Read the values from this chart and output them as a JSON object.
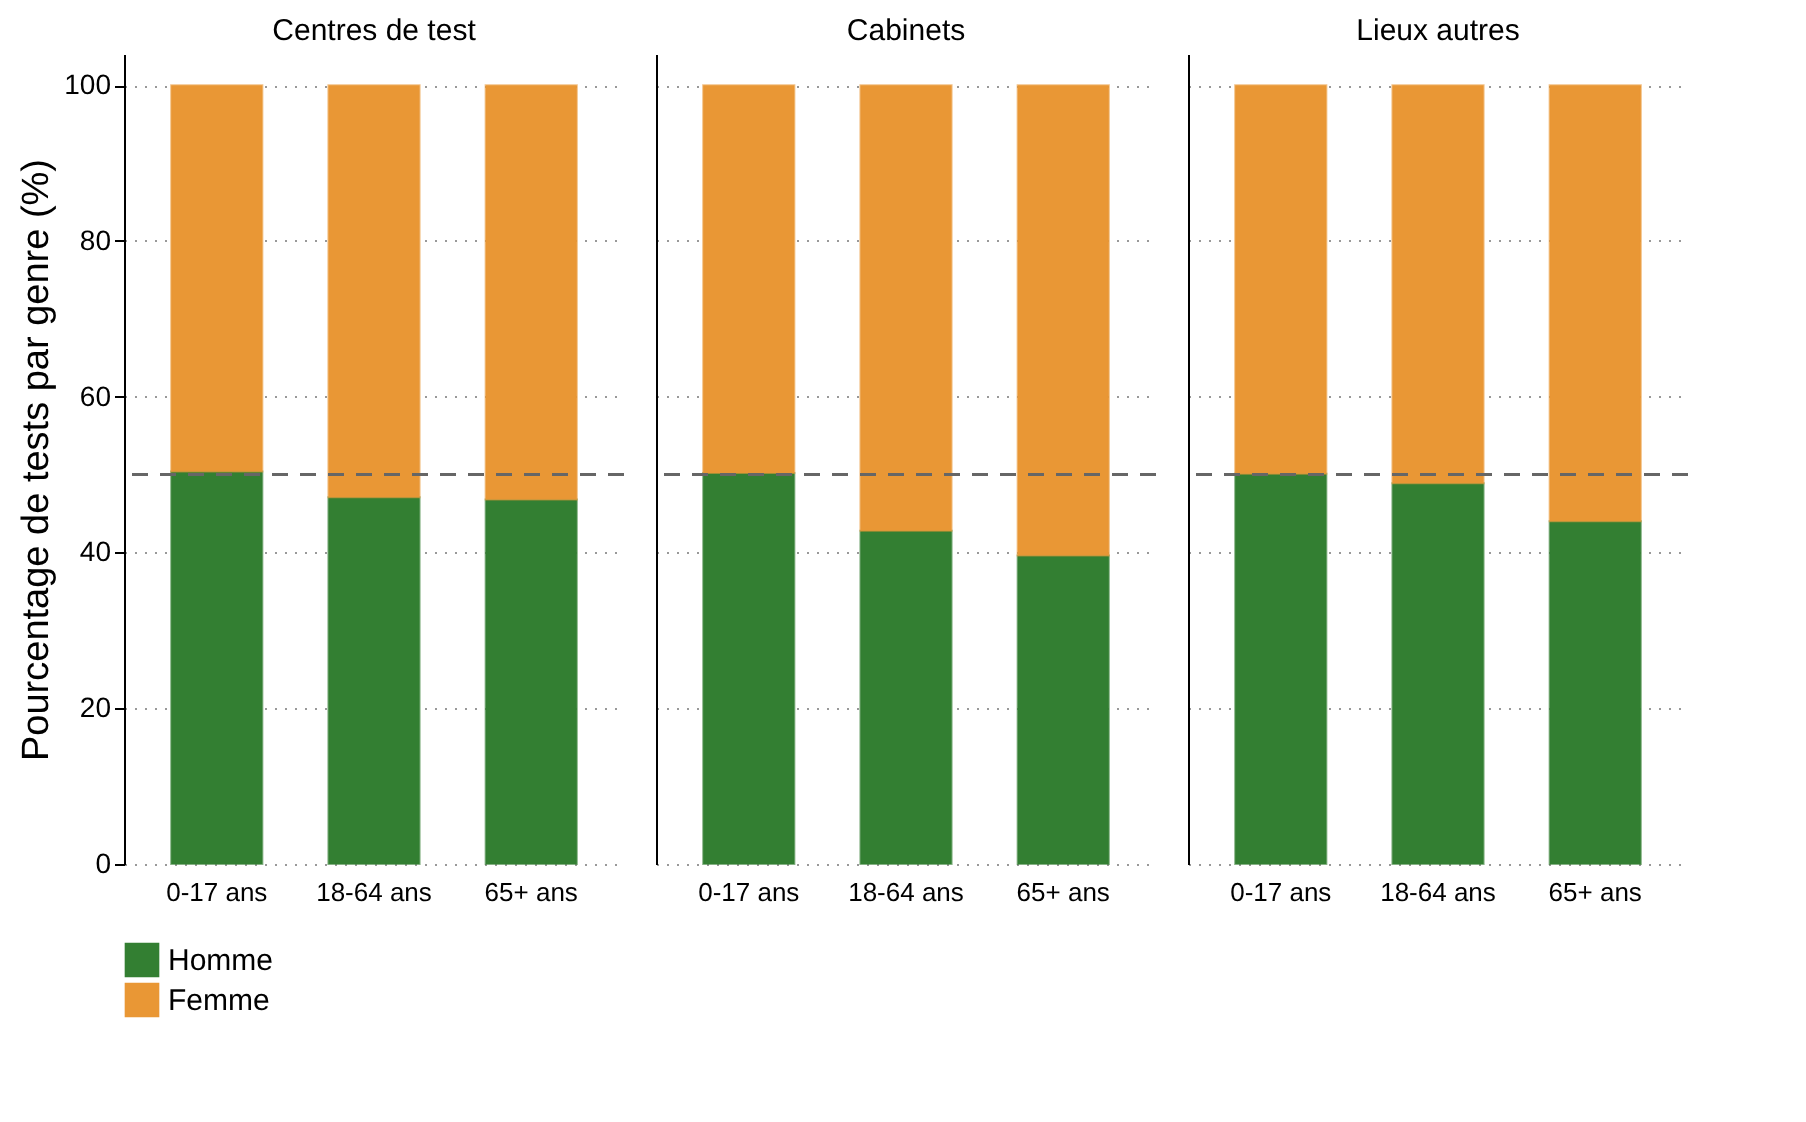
{
  "chart_data": [
    {
      "type": "bar",
      "title": "Centres de test",
      "ylabel": "Pourcentage de tests par genre (%)",
      "categories": [
        "0-17 ans",
        "18-64 ans",
        "65+ ans"
      ],
      "stacked": true,
      "series": [
        {
          "name": "Homme",
          "color": "#337f32",
          "values": [
            50.4,
            47.1,
            46.8
          ]
        },
        {
          "name": "Femme",
          "color": "#e99735",
          "values": [
            49.6,
            52.9,
            53.2
          ]
        }
      ],
      "ylim": [
        0,
        104
      ],
      "yticks": [
        0,
        20,
        40,
        60,
        80,
        100
      ],
      "grid": "y",
      "legend": "bottom",
      "ref_lines": [
        {
          "axis": "y",
          "value": 50,
          "color": "#666666",
          "line_style": "dashed"
        }
      ]
    },
    {
      "type": "bar",
      "title": "Cabinets",
      "categories": [
        "0-17 ans",
        "18-64 ans",
        "65+ ans"
      ],
      "stacked": true,
      "series": [
        {
          "name": "Homme",
          "color": "#337f32",
          "values": [
            50.2,
            42.8,
            39.6
          ]
        },
        {
          "name": "Femme",
          "color": "#e99735",
          "values": [
            49.8,
            57.2,
            60.4
          ]
        }
      ],
      "ylim": [
        0,
        104
      ],
      "yticks": [
        0,
        20,
        40,
        60,
        80,
        100
      ],
      "grid": "y",
      "tick_labels": "x",
      "legend": "bottom",
      "ref_lines": [
        {
          "axis": "y",
          "value": 50,
          "color": "#666666",
          "line_style": "dashed"
        }
      ]
    },
    {
      "type": "bar",
      "title": "Lieux autres",
      "categories": [
        "0-17 ans",
        "18-64 ans",
        "65+ ans"
      ],
      "stacked": true,
      "series": [
        {
          "name": "Homme",
          "color": "#337f32",
          "values": [
            50.1,
            48.9,
            44.0
          ]
        },
        {
          "name": "Femme",
          "color": "#e99735",
          "values": [
            49.9,
            51.1,
            56.0
          ]
        }
      ],
      "ylim": [
        0,
        104
      ],
      "yticks": [
        0,
        20,
        40,
        60,
        80,
        100
      ],
      "grid": "y",
      "tick_labels": "x",
      "legend": "bottom",
      "ref_lines": [
        {
          "axis": "y",
          "value": 50,
          "color": "#666666",
          "line_style": "dashed"
        }
      ]
    }
  ]
}
